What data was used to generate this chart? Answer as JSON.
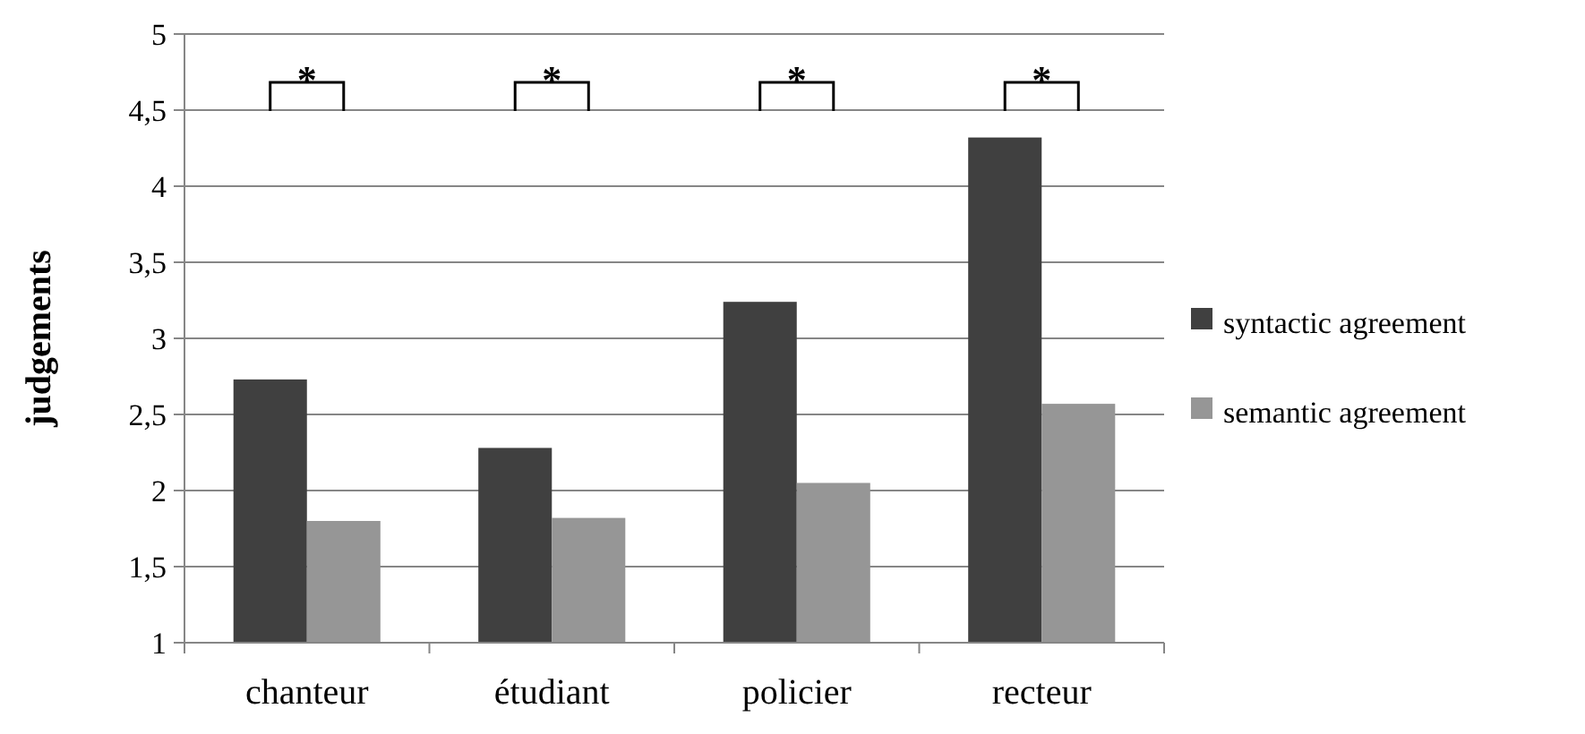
{
  "chart_data": {
    "type": "bar",
    "ylabel": "judgements",
    "categories": [
      "chanteur",
      "étudiant",
      "policier",
      "recteur"
    ],
    "series": [
      {
        "name": "syntactic agreement",
        "color": "#404040",
        "values": [
          2.73,
          2.28,
          3.24,
          4.32
        ]
      },
      {
        "name": "semantic agreement",
        "color": "#969696",
        "values": [
          1.8,
          1.82,
          2.05,
          2.57
        ]
      }
    ],
    "ylim": [
      1,
      5
    ],
    "yticks": [
      {
        "value": 1,
        "label": "1"
      },
      {
        "value": 1.5,
        "label": "1,5"
      },
      {
        "value": 2,
        "label": "2"
      },
      {
        "value": 2.5,
        "label": "2,5"
      },
      {
        "value": 3,
        "label": "3"
      },
      {
        "value": 3.5,
        "label": "3,5"
      },
      {
        "value": 4,
        "label": "4"
      },
      {
        "value": 4.5,
        "label": "4,5"
      },
      {
        "value": 5,
        "label": "5"
      }
    ],
    "grid": "y",
    "legend": "right",
    "annotations": [
      "*",
      "*",
      "*",
      "*"
    ]
  }
}
